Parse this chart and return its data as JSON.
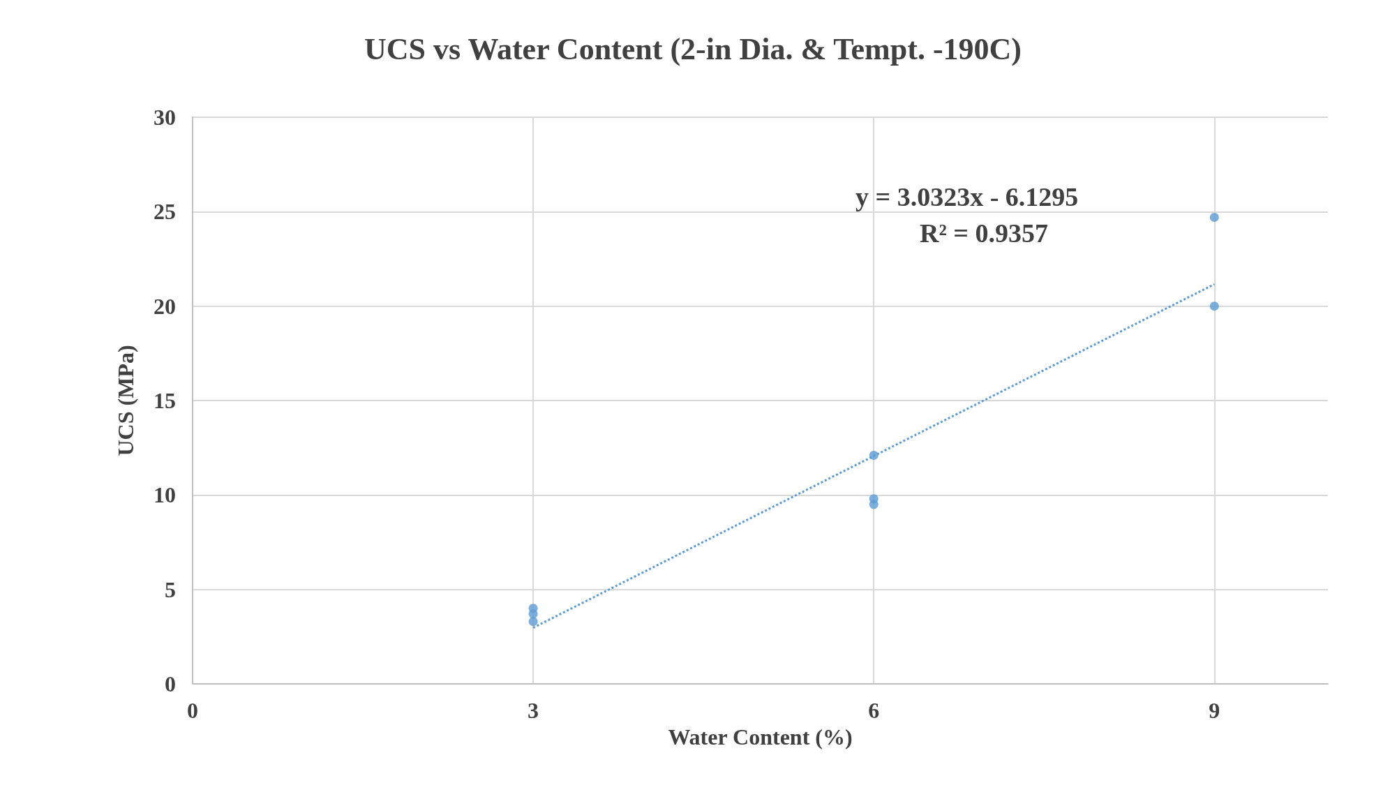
{
  "chart_data": {
    "type": "scatter",
    "title": "UCS vs Water Content (2-in Dia. & Tempt. -190C)",
    "xlabel": "Water Content (%)",
    "ylabel": "UCS (MPa)",
    "xlim": [
      0,
      10
    ],
    "xticks": [
      0,
      3,
      6,
      9
    ],
    "ylim": [
      0,
      30
    ],
    "yticks": [
      0,
      5,
      10,
      15,
      20,
      25,
      30
    ],
    "grid": true,
    "marker": "circle",
    "series": [
      {
        "color": "#5b9bd5",
        "x": [
          3,
          3,
          3,
          6,
          6,
          6,
          9,
          9
        ],
        "values": [
          4.0,
          3.7,
          3.3,
          12.1,
          9.8,
          9.5,
          24.7,
          20.0
        ]
      },
      {
        "type": "line",
        "line_style": "dotted",
        "marker": "none",
        "color": "#5b9bd5",
        "x": [
          3,
          9
        ],
        "values": [
          2.97,
          21.16
        ]
      }
    ],
    "annotations": [
      "y = 3.0323x - 6.1295",
      "R² = 0.9357"
    ]
  }
}
